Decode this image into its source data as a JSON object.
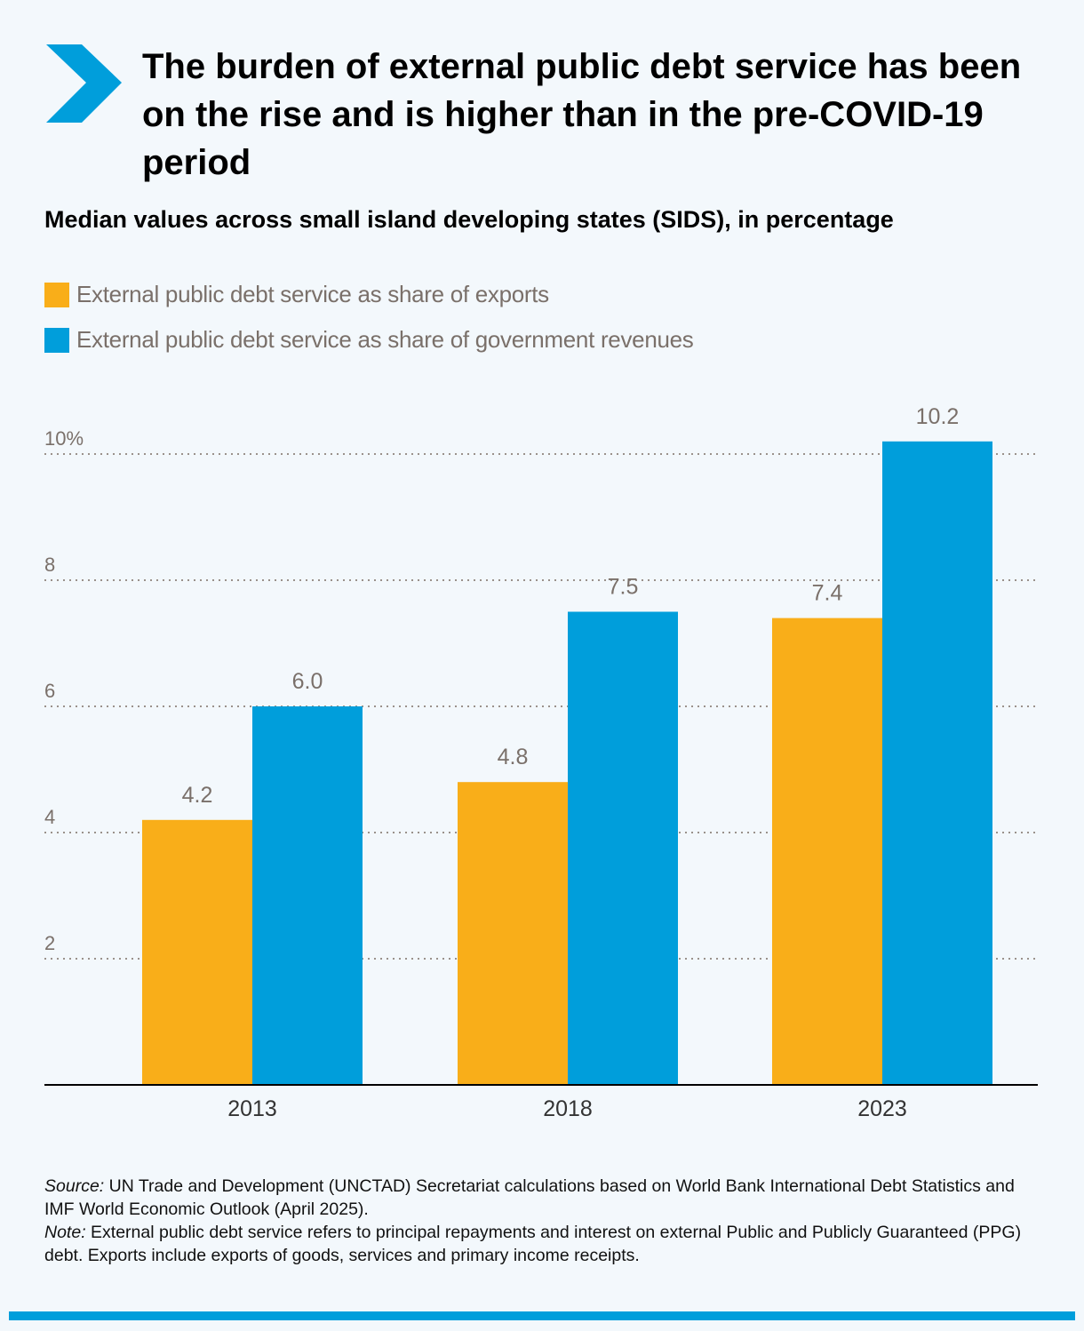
{
  "title": "The burden of external public debt service has been on the rise and is higher than in the pre-COVID-19 period",
  "subtitle": "Median values across small island developing states (SIDS), in percentage",
  "colors": {
    "exports": "#f9ae19",
    "revenues": "#009edb",
    "logo": "#009edb",
    "axis_text": "#7a706a"
  },
  "logo_icon": "chevron-right-icon",
  "chart_data": {
    "type": "bar",
    "categories": [
      "2013",
      "2018",
      "2023"
    ],
    "series": [
      {
        "name": "External public debt service as share of exports",
        "values": [
          4.2,
          4.8,
          7.4
        ],
        "labels": [
          "4.2",
          "4.8",
          "7.4"
        ]
      },
      {
        "name": "External public debt service as share of government revenues",
        "values": [
          6.0,
          7.5,
          10.2
        ],
        "labels": [
          "6.0",
          "7.5",
          "10.2"
        ]
      }
    ],
    "yticks": [
      "2",
      "4",
      "6",
      "8",
      "10%"
    ],
    "ytick_values": [
      2,
      4,
      6,
      8,
      10
    ],
    "ylim": [
      0,
      10.2
    ],
    "grid": true,
    "legend_placement": "top-left"
  },
  "footer": {
    "source_label": "Source:",
    "source_text": " UN Trade and Development (UNCTAD) Secretariat calculations based on World Bank International Debt Statistics and IMF World Economic Outlook (April 2025).",
    "note_label": "Note:",
    "note_text": " External public debt service refers to principal repayments and interest on external Public and Publicly Guaranteed (PPG) debt. Exports include exports of goods, services and primary income receipts."
  }
}
